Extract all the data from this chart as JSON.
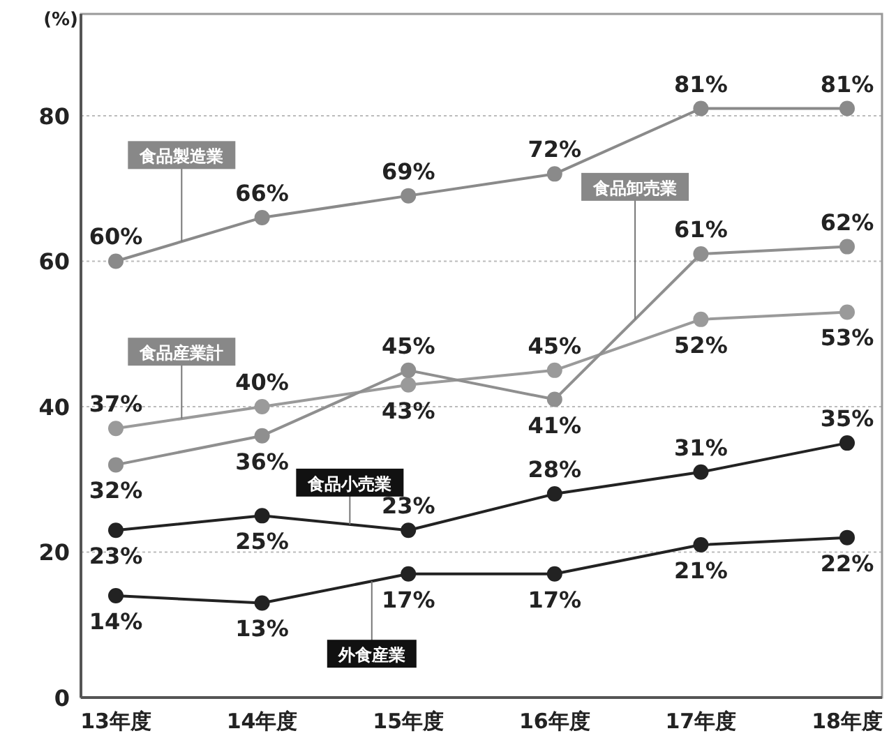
{
  "chart_data": {
    "type": "line",
    "ylabel": "(%)",
    "categories": [
      "13年度",
      "14年度",
      "15年度",
      "16年度",
      "17年度",
      "18年度"
    ],
    "series": [
      {
        "name": "食品製造業",
        "color": "#8a8a8a",
        "values": [
          60,
          66,
          69,
          72,
          81,
          81
        ],
        "value_labels": [
          "60%",
          "66%",
          "69%",
          "72%",
          "81%",
          "81%"
        ]
      },
      {
        "name": "食品産業計",
        "color": "#9a9a9a",
        "values": [
          37,
          40,
          43,
          45,
          52,
          53
        ],
        "value_labels": [
          "37%",
          "40%",
          "43%",
          "45%",
          "52%",
          "53%"
        ]
      },
      {
        "name": "食品卸売業",
        "color": "#8f8f8f",
        "values": [
          32,
          36,
          45,
          41,
          61,
          62
        ],
        "value_labels": [
          "32%",
          "36%",
          "45%",
          "41%",
          "61%",
          "62%"
        ]
      },
      {
        "name": "食品小売業",
        "color": "#222222",
        "values": [
          23,
          25,
          23,
          28,
          31,
          35
        ],
        "value_labels": [
          "23%",
          "25%",
          "23%",
          "28%",
          "31%",
          "35%"
        ]
      },
      {
        "name": "外食産業",
        "color": "#222222",
        "values": [
          14,
          13,
          17,
          17,
          21,
          22
        ],
        "value_labels": [
          "14%",
          "13%",
          "17%",
          "17%",
          "21%",
          "22%"
        ]
      }
    ],
    "ylim": [
      0,
      94
    ],
    "yticks": [
      0,
      20,
      40,
      60,
      80
    ],
    "grid": "y",
    "legend": false,
    "marker": "circle",
    "line_style": "solid"
  }
}
